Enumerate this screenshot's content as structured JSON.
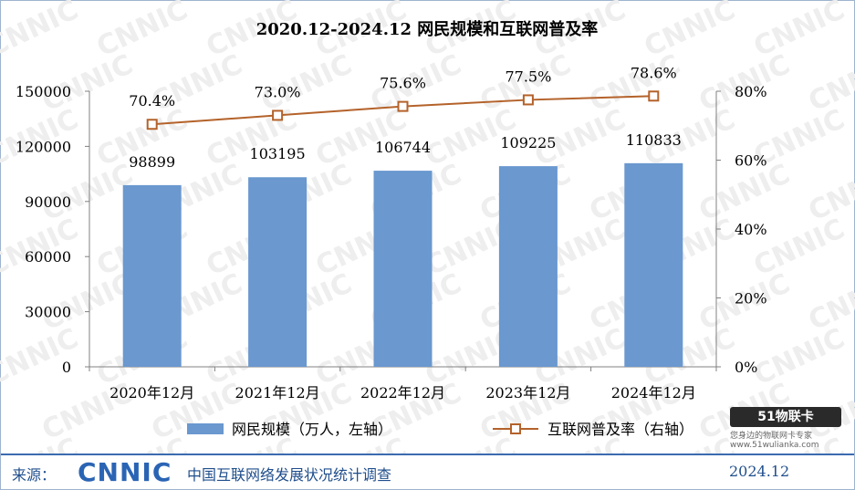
{
  "chart_data": {
    "type": "bar",
    "title": "2020.12-2024.12 网民规模和互联网普及率",
    "categories": [
      "2020年12月",
      "2021年12月",
      "2022年12月",
      "2023年12月",
      "2024年12月"
    ],
    "series": [
      {
        "name": "网民规模（万人，左轴）",
        "type": "bar",
        "axis": "left",
        "color": "#6a98cf",
        "values": [
          98899,
          103195,
          106744,
          109225,
          110833
        ],
        "labels": [
          "98899",
          "103195",
          "106744",
          "109225",
          "110833"
        ]
      },
      {
        "name": "互联网普及率（右轴）",
        "type": "line",
        "axis": "right",
        "color": "#b4622a",
        "values": [
          70.4,
          73.0,
          75.6,
          77.5,
          78.6
        ],
        "labels": [
          "70.4%",
          "73.0%",
          "75.6%",
          "77.5%",
          "78.6%"
        ]
      }
    ],
    "y_left": {
      "min": 0,
      "max": 150000,
      "ticks": [
        "0",
        "30000",
        "60000",
        "90000",
        "120000",
        "150000"
      ]
    },
    "y_right": {
      "min": 0,
      "max": 80,
      "ticks": [
        "0%",
        "20%",
        "40%",
        "60%",
        "80%"
      ]
    },
    "grid": false,
    "legend_position": "bottom"
  },
  "footer": {
    "source_label": "来源：",
    "logo_text": "CNNIC",
    "survey_name": "中国互联网络发展状况统计调查",
    "date": "2024.12"
  },
  "watermark": {
    "text": "CNNIC"
  },
  "brand": {
    "badge": "51物联卡",
    "subtitle": "您身边的物联网卡专家 www.51wulianka.com"
  }
}
